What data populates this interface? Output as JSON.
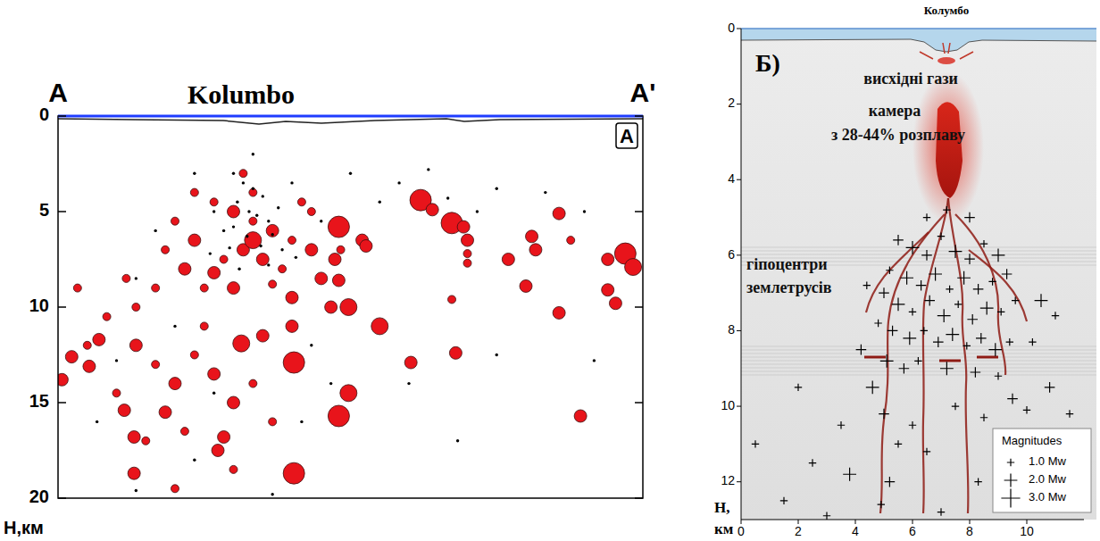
{
  "chart_data": [
    {
      "type": "scatter",
      "title": "Kolumbo",
      "panel_label": "А",
      "annotations": [
        "A",
        "A'"
      ],
      "y_label": "H,км",
      "xlim": [
        0,
        30
      ],
      "ylim": [
        0,
        20
      ],
      "yticks": [
        0,
        5,
        10,
        15,
        20
      ],
      "tick_labels": "y",
      "series": [
        {
          "color": "#e8141b",
          "marker": "circle",
          "x": [
            8,
            9,
            10,
            11,
            7,
            12,
            9.5,
            8.5,
            10.5,
            11.5,
            6.5,
            13,
            13.5,
            7.5,
            9,
            12,
            14,
            5.5,
            6,
            10,
            7,
            13,
            11,
            8,
            10,
            9.5,
            12.5,
            14.5,
            5,
            4,
            14.4,
            15.6,
            15.8,
            14.2,
            14.4,
            14.9,
            16.5,
            18.6,
            19.2,
            20.2,
            20.8,
            21,
            21,
            21,
            24.3,
            24.5,
            25.7,
            23.1,
            24,
            25.7,
            26.3,
            28.2,
            29.1,
            29.5,
            28.2,
            28.6,
            26.8,
            20.2,
            20.4,
            18.1,
            14.9,
            14.4,
            12.1,
            12.1,
            9.4,
            8.5,
            8.2,
            3.9,
            3.9,
            3.4,
            1.6,
            0.7,
            0.2,
            2.1,
            4,
            5,
            6,
            7,
            8,
            9,
            10,
            11,
            5.5,
            3,
            6.5,
            7.5,
            2.5,
            1,
            1.5,
            4.5,
            6,
            9,
            10.5,
            12,
            3.5
          ],
          "y": [
            4.5,
            5,
            5.5,
            6,
            6.5,
            6.5,
            7,
            7.5,
            7.5,
            8,
            8,
            7,
            8.5,
            9,
            9,
            9.5,
            10,
            7,
            5.5,
            4,
            4,
            5,
            8.8,
            8.2,
            6.5,
            3,
            4.5,
            7,
            9,
            10,
            5.8,
            6.5,
            6.8,
            7.5,
            8.6,
            10,
            11,
            4.4,
            4.9,
            5.6,
            5.8,
            6.5,
            7.2,
            7.7,
            6.3,
            7,
            5.1,
            7.5,
            8.9,
            10.3,
            6.5,
            7.5,
            7.2,
            7.9,
            9.1,
            9.8,
            15.7,
            9.6,
            12.4,
            12.9,
            14.5,
            15.7,
            12.9,
            18.7,
            11.9,
            16.8,
            17.5,
            16.8,
            18.7,
            15.4,
            13.1,
            12.6,
            13.8,
            11.7,
            12,
            13,
            14,
            12.5,
            13.5,
            15,
            14,
            16,
            15.5,
            14.5,
            16.5,
            11,
            10.5,
            9,
            12,
            17,
            19.5,
            18.5,
            11.5,
            11,
            8.5
          ],
          "sizes": [
            1,
            2,
            1,
            2,
            2,
            1,
            2,
            1,
            2,
            1,
            2,
            2,
            2,
            1,
            2,
            2,
            2,
            1,
            1,
            1,
            1,
            1,
            1,
            2,
            3,
            1,
            1,
            1,
            1,
            1,
            4,
            2,
            2,
            2,
            2,
            3,
            3,
            4,
            2,
            4,
            2,
            2,
            1,
            1,
            2,
            2,
            2,
            2,
            2,
            2,
            1,
            2,
            4,
            3,
            2,
            2,
            2,
            1,
            2,
            2,
            3,
            4,
            4,
            4,
            3,
            2,
            2,
            2,
            2,
            2,
            2,
            2,
            2,
            2,
            2,
            1,
            2,
            1,
            2,
            2,
            1,
            1,
            2,
            1,
            1,
            1,
            1,
            1,
            1,
            1,
            1,
            1,
            2,
            2,
            1
          ]
        },
        {
          "color": "#000000",
          "marker": "dot",
          "x": [
            9,
            9.5,
            10,
            10.5,
            9.2,
            9.8,
            10.2,
            10.8,
            9,
            8.5,
            11,
            10.4,
            9.7,
            8.8,
            11.5,
            10.8,
            9.3,
            12.2,
            7.8,
            8,
            11.3,
            10,
            12,
            7,
            5,
            4,
            13.5,
            15,
            16.5,
            17.5,
            19,
            20,
            21.5,
            22.5,
            25,
            27,
            13,
            14,
            12.5,
            18,
            20.5,
            22.5,
            27.5,
            7,
            11,
            2,
            4,
            8,
            6,
            3
          ],
          "y": [
            3,
            3.5,
            3.8,
            4.2,
            4.5,
            5,
            5.2,
            5.5,
            5.8,
            6,
            6.2,
            6.8,
            6.3,
            6.9,
            7,
            7.8,
            8,
            7.4,
            7.2,
            5,
            4.8,
            2,
            3.5,
            3,
            6,
            8.5,
            5.5,
            3,
            4.5,
            3.5,
            2.8,
            4.3,
            5,
            3.8,
            4,
            5,
            12,
            14,
            16,
            14,
            17,
            12.5,
            12.8,
            18,
            19.8,
            16,
            19.6,
            14.5,
            11,
            12.8
          ]
        }
      ]
    },
    {
      "type": "scatter",
      "title": "Колумбо",
      "panel_label": "Б)",
      "annotations": [
        "висхідні гази",
        "камера",
        "з 28-44% розплаву",
        "гіпоцентри",
        "землетрусів"
      ],
      "y_label": "H, км",
      "xlim": [
        0,
        12
      ],
      "ylim": [
        0,
        13
      ],
      "xticks": [
        0,
        2,
        4,
        6,
        8,
        10
      ],
      "yticks": [
        0,
        2,
        4,
        6,
        8,
        10,
        12
      ],
      "legend": "lower right",
      "size_legend_title": "Magnitudes",
      "size_legend": [
        {
          "value": 1,
          "label": "1.0 Mw"
        },
        {
          "value": 2,
          "label": "2.0 Mw"
        },
        {
          "value": 3,
          "label": "3.0 Mw"
        }
      ],
      "series": [
        {
          "color": "#000000",
          "marker": "cross",
          "x": [
            5.5,
            6,
            6.5,
            7,
            7.5,
            8,
            8.5,
            9,
            5.2,
            5.8,
            6.3,
            6.8,
            7.3,
            7.8,
            8.3,
            8.8,
            9.3,
            5,
            5.5,
            6,
            6.6,
            7.1,
            7.6,
            8.1,
            8.6,
            9.1,
            9.6,
            4.8,
            5.3,
            5.9,
            6.4,
            6.9,
            7.4,
            7.9,
            8.4,
            8.9,
            9.4,
            5.1,
            5.7,
            6.2,
            7.2,
            8.2,
            9,
            6.5,
            7.2,
            8,
            4.4,
            4.2,
            10.5,
            11,
            10.2,
            4.6,
            5,
            5.5,
            5.2,
            4.9,
            6,
            6.5,
            7.5,
            8.5,
            9.5,
            10.8,
            11.5,
            3.8,
            3.5,
            2.5,
            1.5,
            0.5,
            2,
            3,
            8.3,
            7,
            10
          ],
          "y": [
            5.6,
            5.8,
            6,
            5.5,
            5.9,
            6.1,
            5.7,
            6,
            6.4,
            6.6,
            6.8,
            6.5,
            6.9,
            6.6,
            6.9,
            6.7,
            6.5,
            7,
            7.3,
            7.5,
            7.2,
            7.6,
            7.3,
            7.7,
            7.4,
            7.5,
            7.2,
            7.8,
            8,
            8.2,
            8,
            8.3,
            8.1,
            8.4,
            8.2,
            8.5,
            8.3,
            8.8,
            9,
            8.8,
            9,
            9.1,
            9.2,
            5,
            4.8,
            5,
            6.8,
            8.5,
            7.2,
            7.6,
            8.3,
            9.5,
            10.2,
            11,
            12,
            12.6,
            10.5,
            11.2,
            10,
            10.3,
            9.8,
            9.5,
            10.2,
            11.8,
            10.5,
            11.5,
            12.5,
            11,
            9.5,
            12.9,
            12,
            12.8,
            10.1
          ],
          "sizes": [
            1.5,
            2,
            1.5,
            1,
            2,
            1.5,
            1,
            2,
            1,
            2,
            1.5,
            2,
            1,
            2,
            1.5,
            1,
            1.5,
            1.5,
            2,
            1,
            1.5,
            2,
            1,
            1.5,
            2,
            1,
            1,
            1,
            1.5,
            2,
            1,
            1.5,
            2,
            1,
            1.5,
            2,
            1,
            2,
            1.5,
            1,
            2,
            1.5,
            1,
            1,
            1,
            1.5,
            1,
            1.5,
            2,
            1,
            1,
            2,
            1.5,
            1,
            1.5,
            1,
            1,
            1,
            1,
            1,
            1.5,
            1.5,
            1,
            2,
            1,
            1,
            1,
            1,
            1,
            1,
            1,
            1,
            1
          ]
        }
      ]
    }
  ]
}
